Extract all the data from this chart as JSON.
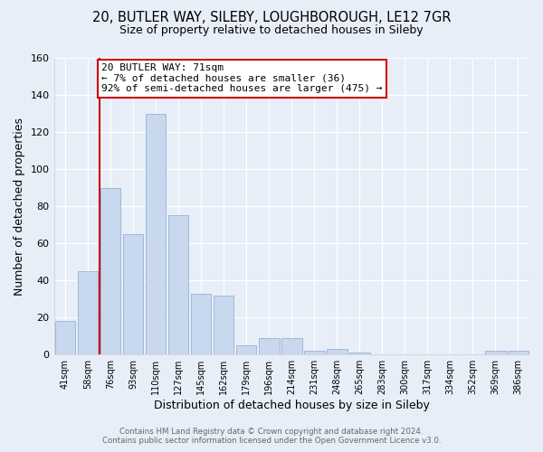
{
  "title1": "20, BUTLER WAY, SILEBY, LOUGHBOROUGH, LE12 7GR",
  "title2": "Size of property relative to detached houses in Sileby",
  "xlabel": "Distribution of detached houses by size in Sileby",
  "ylabel": "Number of detached properties",
  "bar_labels": [
    "41sqm",
    "58sqm",
    "76sqm",
    "93sqm",
    "110sqm",
    "127sqm",
    "145sqm",
    "162sqm",
    "179sqm",
    "196sqm",
    "214sqm",
    "231sqm",
    "248sqm",
    "265sqm",
    "283sqm",
    "300sqm",
    "317sqm",
    "334sqm",
    "352sqm",
    "369sqm",
    "386sqm"
  ],
  "bar_values": [
    18,
    45,
    90,
    65,
    130,
    75,
    33,
    32,
    5,
    9,
    9,
    2,
    3,
    1,
    0,
    0,
    0,
    0,
    0,
    2,
    2
  ],
  "bar_color": "#c8d8ee",
  "bar_edge_color": "#a0b8d8",
  "annotation_title": "20 BUTLER WAY: 71sqm",
  "annotation_line1": "← 7% of detached houses are smaller (36)",
  "annotation_line2": "92% of semi-detached houses are larger (475) →",
  "annotation_box_color": "#ffffff",
  "annotation_box_edge": "#cc0000",
  "vline_color": "#cc0000",
  "vline_pos": 1.5,
  "ylim": [
    0,
    160
  ],
  "yticks": [
    0,
    20,
    40,
    60,
    80,
    100,
    120,
    140,
    160
  ],
  "footer_line1": "Contains HM Land Registry data © Crown copyright and database right 2024.",
  "footer_line2": "Contains public sector information licensed under the Open Government Licence v3.0.",
  "bg_color": "#e8eef8",
  "grid_color": "#ffffff"
}
